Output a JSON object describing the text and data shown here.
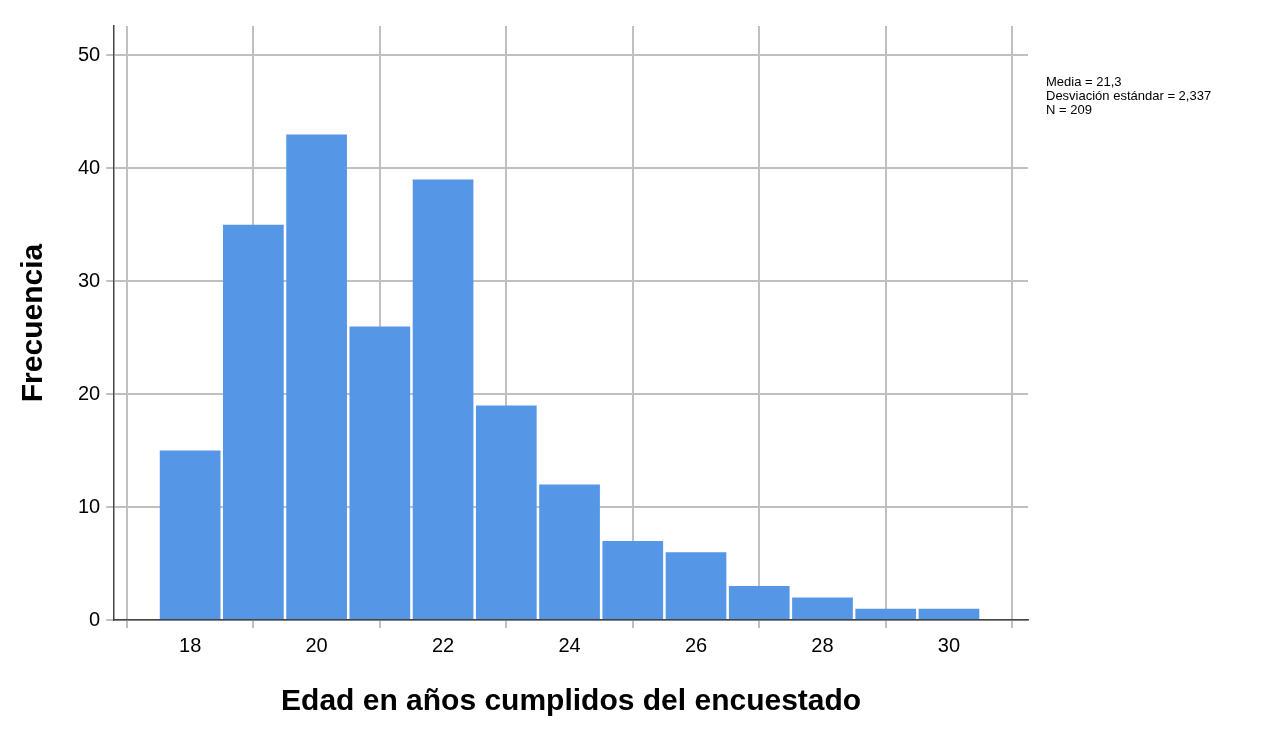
{
  "chart_data": {
    "type": "histogram",
    "xlabel": "Edad en años cumplidos del encuestado",
    "ylabel": "Frecuencia",
    "bins": [
      17.5,
      18.5,
      19.5,
      20.5,
      21.5,
      22.5,
      23.5,
      24.5,
      25.5,
      26.5,
      27.5,
      28.5,
      29.5,
      30.5
    ],
    "values": [
      15,
      35,
      43,
      26,
      39,
      19,
      12,
      7,
      6,
      3,
      2,
      1,
      1
    ],
    "color": "#5596e6",
    "xlim": [
      16.8,
      31.25
    ],
    "xticks": [
      18,
      20,
      22,
      24,
      26,
      28,
      30
    ],
    "ylim": [
      0,
      52.6
    ],
    "yticks": [
      0,
      10,
      20,
      30,
      40,
      50
    ],
    "grid": true,
    "annotations": [
      "Media = 21,3",
      "Desviación estándar = 2,337",
      "N = 209"
    ]
  }
}
